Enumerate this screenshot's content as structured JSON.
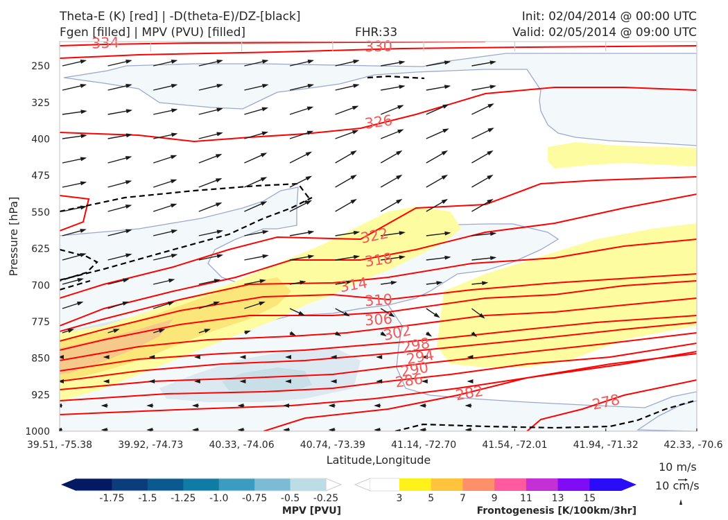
{
  "header": {
    "line1_left": "Theta-E (K) [red] | -D(theta-E)/DZ-[black]",
    "line2_left": "Fgen [filled] | MPV (PVU) [filled]",
    "fhr": "FHR:33",
    "init": "Init: 02/04/2014 @ 00:00 UTC",
    "valid": "Valid: 02/05/2014 @ 09:00 UTC"
  },
  "quiver_key": {
    "horizontal": "10 m/s",
    "vertical": "10 cm/s"
  },
  "colors": {
    "theta_e": "#ff0000",
    "theta_e_label": "#f25a5a",
    "ddz": "#000000",
    "mpv_outline": "#9aa8cf",
    "axis": "#cccccc"
  },
  "chart_data": {
    "type": "cross-section",
    "title": "Theta-E (K) [red] | -D(theta-E)/DZ-[black] / Fgen [filled] | MPV (PVU) [filled]",
    "xlabel": "Latitude,Longitude",
    "ylabel": "Pressure [hPa]",
    "x_ticks": [
      "39.51, -75.38",
      "39.92, -74.73",
      "40.33, -74.06",
      "40.74, -73.39",
      "41.14, -72.70",
      "41.54, -72.01",
      "41.94, -71.32",
      "42.33, -70.6"
    ],
    "y_ticks": [
      "250",
      "325",
      "400",
      "475",
      "550",
      "625",
      "700",
      "775",
      "850",
      "925",
      "1000"
    ],
    "y_tick_values": [
      250,
      325,
      400,
      475,
      550,
      625,
      700,
      775,
      850,
      925,
      1000
    ],
    "ylim": [
      1000,
      200
    ],
    "y_inverted": true,
    "theta_e_contour_labels": [
      "334",
      "330",
      "326",
      "322",
      "318",
      "314",
      "310",
      "306",
      "302",
      "298",
      "294",
      "290",
      "286",
      "282",
      "278"
    ],
    "theta_e_levels": [
      334,
      330,
      326,
      322,
      318,
      314,
      310,
      306,
      302,
      298,
      294,
      290,
      286,
      282,
      278
    ],
    "colorbars": [
      {
        "name": "MPV",
        "title": "MPV [PVU]",
        "ticks": [
          "-1.75",
          "-1.5",
          "-1.25",
          "-1.0",
          "-0.75",
          "-0.5",
          "-0.25"
        ],
        "tick_values": [
          -1.75,
          -1.5,
          -1.25,
          -1.0,
          -0.75,
          -0.5,
          -0.25
        ],
        "colors": [
          "#031a63",
          "#0a3d7a",
          "#0b5a8f",
          "#0f7ca5",
          "#3a9cc0",
          "#7bbbd4",
          "#bcdde6",
          "#ffffff"
        ],
        "extend": "both"
      },
      {
        "name": "Frontogenesis",
        "title": "Frontogenesis [K/100km/3hr]",
        "ticks": [
          "3",
          "5",
          "7",
          "9",
          "11",
          "13",
          "15"
        ],
        "tick_values": [
          3,
          5,
          7,
          9,
          11,
          13,
          15
        ],
        "colors": [
          "#ffffff",
          "#fff21a",
          "#ffc43c",
          "#ff8f6a",
          "#ff5aa0",
          "#c42fd6",
          "#7f0cf5",
          "#2a0cf8"
        ],
        "extend": "both"
      }
    ]
  }
}
